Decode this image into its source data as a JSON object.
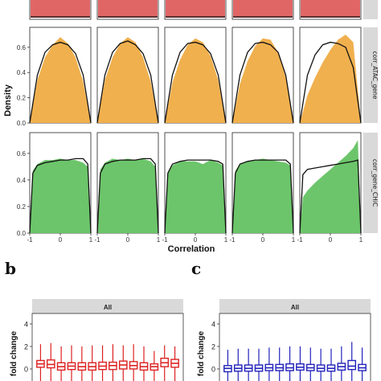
{
  "figure": {
    "panel_b_letter": "b",
    "panel_c_letter": "c"
  },
  "colors": {
    "red_fill": "#e06666",
    "orange_fill": "#f0b04e",
    "green_fill": "#6cc56a",
    "red_box": "#dd2222",
    "blue_box": "#2222bb",
    "panel_bg": "#ffffff",
    "strip_bg": "#d9d9d9"
  },
  "chart_data": [
    {
      "type": "area",
      "facets": 5,
      "xlabel": "Correlation",
      "ylabel": "Density",
      "x_ticks": [
        "-1",
        "0",
        "1"
      ],
      "xlim": [
        -1,
        1
      ],
      "rows": [
        {
          "strip_label": "",
          "fill_color": "#e06666",
          "ylim": [
            0,
            0.7
          ],
          "y_ticks": [],
          "partially_visible": true
        },
        {
          "strip_label": "corr_ATAC_gene",
          "fill_color": "#f0b04e",
          "ylim": [
            0,
            0.72
          ],
          "y_ticks": [
            "0.0",
            "0.2",
            "0.4",
            "0.6"
          ],
          "x": [
            -1,
            -0.75,
            -0.5,
            -0.25,
            0,
            0.25,
            0.5,
            0.75,
            1
          ],
          "facets": [
            {
              "fill": [
                0.0,
                0.34,
                0.52,
                0.62,
                0.68,
                0.63,
                0.52,
                0.33,
                0.0
              ],
              "line": [
                0.0,
                0.38,
                0.56,
                0.62,
                0.64,
                0.62,
                0.55,
                0.38,
                0.0
              ]
            },
            {
              "fill": [
                0.0,
                0.34,
                0.52,
                0.63,
                0.68,
                0.64,
                0.52,
                0.33,
                0.0
              ],
              "line": [
                0.0,
                0.38,
                0.56,
                0.63,
                0.65,
                0.62,
                0.55,
                0.38,
                0.0
              ]
            },
            {
              "fill": [
                0.0,
                0.32,
                0.5,
                0.62,
                0.67,
                0.64,
                0.53,
                0.34,
                0.0
              ],
              "line": [
                0.0,
                0.38,
                0.56,
                0.63,
                0.64,
                0.62,
                0.55,
                0.38,
                0.0
              ]
            },
            {
              "fill": [
                0.0,
                0.31,
                0.49,
                0.61,
                0.67,
                0.66,
                0.56,
                0.36,
                0.0
              ],
              "line": [
                0.0,
                0.38,
                0.56,
                0.63,
                0.64,
                0.62,
                0.56,
                0.38,
                0.0
              ]
            },
            {
              "fill": [
                0.0,
                0.22,
                0.36,
                0.48,
                0.58,
                0.66,
                0.7,
                0.64,
                0.0
              ],
              "line": [
                0.0,
                0.38,
                0.54,
                0.62,
                0.64,
                0.63,
                0.6,
                0.44,
                0.0
              ]
            }
          ]
        },
        {
          "strip_label": "corr_gene_CHiC",
          "fill_color": "#6cc56a",
          "ylim": [
            0,
            0.72
          ],
          "y_ticks": [
            "0.0",
            "0.2",
            "0.4",
            "0.6"
          ],
          "x": [
            -1,
            -0.9,
            -0.75,
            -0.5,
            -0.25,
            0,
            0.25,
            0.5,
            0.75,
            0.9,
            1
          ],
          "facets": [
            {
              "fill": [
                0.0,
                0.47,
                0.52,
                0.55,
                0.55,
                0.56,
                0.55,
                0.55,
                0.53,
                0.5,
                0.0
              ],
              "line": [
                0.0,
                0.45,
                0.51,
                0.53,
                0.54,
                0.55,
                0.55,
                0.56,
                0.56,
                0.52,
                0.0
              ]
            },
            {
              "fill": [
                0.0,
                0.48,
                0.53,
                0.56,
                0.55,
                0.56,
                0.55,
                0.56,
                0.54,
                0.5,
                0.0
              ],
              "line": [
                0.0,
                0.45,
                0.52,
                0.54,
                0.55,
                0.55,
                0.55,
                0.56,
                0.56,
                0.52,
                0.0
              ]
            },
            {
              "fill": [
                0.0,
                0.46,
                0.51,
                0.54,
                0.54,
                0.54,
                0.52,
                0.55,
                0.53,
                0.51,
                0.0
              ],
              "line": [
                0.0,
                0.45,
                0.52,
                0.54,
                0.55,
                0.55,
                0.55,
                0.55,
                0.54,
                0.52,
                0.0
              ]
            },
            {
              "fill": [
                0.0,
                0.47,
                0.52,
                0.54,
                0.55,
                0.56,
                0.55,
                0.54,
                0.53,
                0.51,
                0.0
              ],
              "line": [
                0.0,
                0.45,
                0.52,
                0.54,
                0.55,
                0.55,
                0.55,
                0.55,
                0.55,
                0.52,
                0.0
              ]
            },
            {
              "fill": [
                0.0,
                0.27,
                0.32,
                0.38,
                0.43,
                0.48,
                0.53,
                0.58,
                0.64,
                0.7,
                0.0
              ],
              "line": [
                0.0,
                0.44,
                0.48,
                0.49,
                0.5,
                0.51,
                0.52,
                0.53,
                0.54,
                0.55,
                0.0
              ]
            }
          ]
        }
      ]
    },
    {
      "type": "box",
      "panel": "b",
      "strip_label": "All",
      "ylabel": "fold change",
      "y_ticks": [
        "0",
        "2",
        "4"
      ],
      "ylim": [
        -1.5,
        4.5
      ],
      "color": "#dd2222",
      "boxes": [
        {
          "q1": 0.15,
          "median": 0.45,
          "q3": 0.75,
          "wlo": -1.5,
          "whi": 2.2
        },
        {
          "q1": 0.1,
          "median": 0.4,
          "q3": 0.8,
          "wlo": -1.5,
          "whi": 2.3
        },
        {
          "q1": -0.1,
          "median": 0.2,
          "q3": 0.55,
          "wlo": -1.5,
          "whi": 2.0
        },
        {
          "q1": -0.05,
          "median": 0.25,
          "q3": 0.55,
          "wlo": -1.5,
          "whi": 2.1
        },
        {
          "q1": -0.1,
          "median": 0.2,
          "q3": 0.55,
          "wlo": -1.5,
          "whi": 2.0
        },
        {
          "q1": -0.1,
          "median": 0.2,
          "q3": 0.55,
          "wlo": -1.5,
          "whi": 2.1
        },
        {
          "q1": -0.05,
          "median": 0.25,
          "q3": 0.6,
          "wlo": -1.5,
          "whi": 2.1
        },
        {
          "q1": -0.05,
          "median": 0.3,
          "q3": 0.6,
          "wlo": -1.5,
          "whi": 2.2
        },
        {
          "q1": 0.0,
          "median": 0.35,
          "q3": 0.7,
          "wlo": -1.5,
          "whi": 2.1
        },
        {
          "q1": 0.0,
          "median": 0.3,
          "q3": 0.65,
          "wlo": -1.5,
          "whi": 2.2
        },
        {
          "q1": -0.1,
          "median": 0.2,
          "q3": 0.55,
          "wlo": -1.5,
          "whi": 2.0
        },
        {
          "q1": -0.1,
          "median": 0.2,
          "q3": 0.45,
          "wlo": -1.5,
          "whi": 1.6
        },
        {
          "q1": 0.2,
          "median": 0.55,
          "q3": 0.95,
          "wlo": -1.5,
          "whi": 2.1
        },
        {
          "q1": 0.15,
          "median": 0.5,
          "q3": 0.85,
          "wlo": -1.5,
          "whi": 2.0
        }
      ]
    },
    {
      "type": "box",
      "panel": "c",
      "strip_label": "All",
      "ylabel": "fold change",
      "y_ticks": [
        "0",
        "2",
        "4"
      ],
      "ylim": [
        -1.5,
        4.5
      ],
      "color": "#2222bb",
      "boxes": [
        {
          "q1": -0.25,
          "median": 0.05,
          "q3": 0.3,
          "wlo": -1.5,
          "whi": 1.7
        },
        {
          "q1": -0.2,
          "median": 0.05,
          "q3": 0.35,
          "wlo": -1.5,
          "whi": 1.8
        },
        {
          "q1": -0.2,
          "median": 0.05,
          "q3": 0.35,
          "wlo": -1.5,
          "whi": 1.8
        },
        {
          "q1": -0.2,
          "median": 0.05,
          "q3": 0.35,
          "wlo": -1.5,
          "whi": 1.8
        },
        {
          "q1": -0.15,
          "median": 0.1,
          "q3": 0.4,
          "wlo": -1.5,
          "whi": 1.9
        },
        {
          "q1": -0.15,
          "median": 0.1,
          "q3": 0.4,
          "wlo": -1.5,
          "whi": 1.9
        },
        {
          "q1": -0.15,
          "median": 0.1,
          "q3": 0.45,
          "wlo": -1.5,
          "whi": 2.0
        },
        {
          "q1": -0.1,
          "median": 0.15,
          "q3": 0.45,
          "wlo": -1.5,
          "whi": 2.0
        },
        {
          "q1": -0.15,
          "median": 0.1,
          "q3": 0.4,
          "wlo": -1.5,
          "whi": 1.9
        },
        {
          "q1": -0.2,
          "median": 0.05,
          "q3": 0.35,
          "wlo": -1.5,
          "whi": 1.8
        },
        {
          "q1": -0.2,
          "median": 0.05,
          "q3": 0.35,
          "wlo": -1.5,
          "whi": 1.8
        },
        {
          "q1": -0.1,
          "median": 0.2,
          "q3": 0.5,
          "wlo": -1.5,
          "whi": 2.0
        },
        {
          "q1": -0.05,
          "median": 0.25,
          "q3": 0.75,
          "wlo": -1.5,
          "whi": 2.4
        },
        {
          "q1": -0.15,
          "median": 0.1,
          "q3": 0.4,
          "wlo": -1.5,
          "whi": 1.9
        }
      ]
    }
  ]
}
